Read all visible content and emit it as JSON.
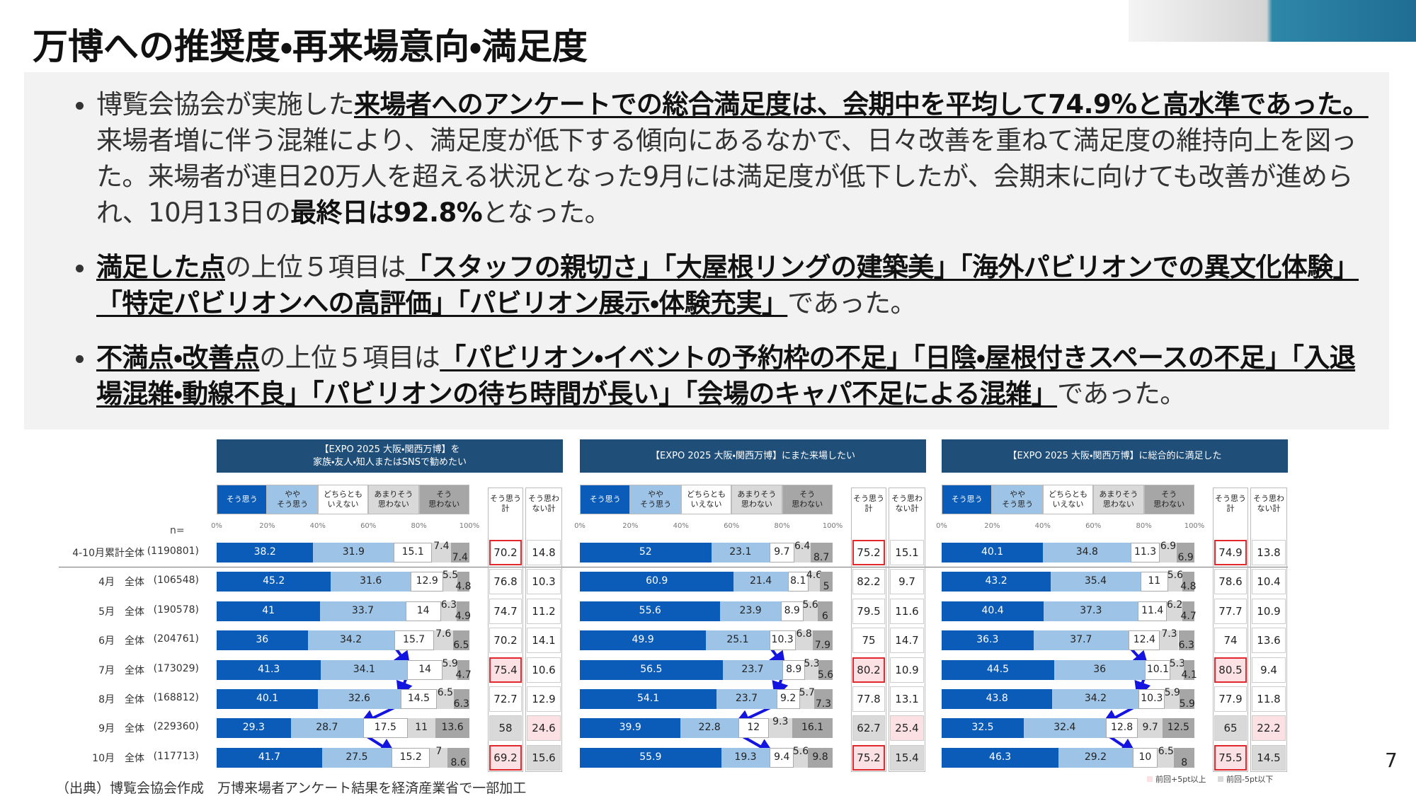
{
  "header": {
    "title": "万博への推奨度・再来場意向・満足度"
  },
  "bullets": [
    {
      "runs": [
        {
          "text": "博覧会協会が実施した",
          "style": "normal"
        },
        {
          "text": "来場者へのアンケートでの総合満足度は、会期中を平均して74.9%と高水準であった。",
          "style": "bold-underline"
        },
        {
          "text": "来場者増に伴う混雑により、満足度が低下する傾向にあるなかで、日々改善を重ねて満足度の維持向上を図った。来場者が連日20万人を超える状況となった9月には満足度が低下したが、会期末に向けても改善が進められ、10月13日の",
          "style": "normal"
        },
        {
          "text": "最終日は92.8%",
          "style": "bold"
        },
        {
          "text": "となった。",
          "style": "normal"
        }
      ]
    },
    {
      "runs": [
        {
          "text": "満足した点",
          "style": "bold-underline"
        },
        {
          "text": "の上位５項目は",
          "style": "normal"
        },
        {
          "text": "「スタッフの親切さ」「大屋根リングの建築美」「海外パビリオンでの異文化体験」「特定パビリオンへの高評価」「パビリオン展示・体験充実」",
          "style": "bold-underline"
        },
        {
          "text": "であった。",
          "style": "normal"
        }
      ]
    },
    {
      "runs": [
        {
          "text": "不満点・改善点",
          "style": "bold-underline"
        },
        {
          "text": "の上位５項目は",
          "style": "normal"
        },
        {
          "text": "「パビリオン・イベントの予約枠の不足」「日陰・屋根付きスペースの不足」「入退場混雑・動線不良」「パビリオンの待ち時間が長い」「会場のキャパ不足による混雑」",
          "style": "bold-underline"
        },
        {
          "text": "であった。",
          "style": "normal"
        }
      ]
    }
  ],
  "charts": {
    "segment_labels": [
      "そう思う",
      "やや\nそう思う",
      "どちらとも\nいえない",
      "あまりそう\n思わない",
      "そう\n思わない"
    ],
    "segment_colors": [
      "#0b5cb8",
      "#9dc3e6",
      "#ffffff",
      "#d9d9d9",
      "#a6a6a6"
    ],
    "total_labels": [
      "そう思う\n計",
      "そう思わ\nない計"
    ],
    "xlim": [
      0,
      100
    ],
    "xticks": [
      {
        "value": 0,
        "label": "0%"
      },
      {
        "value": 20,
        "label": "20%"
      },
      {
        "value": 40,
        "label": "40%"
      },
      {
        "value": 60,
        "label": "60%"
      },
      {
        "value": 80,
        "label": "80%"
      },
      {
        "value": 100,
        "label": "100%"
      }
    ],
    "n_label": "n=",
    "rows": [
      {
        "label": "4-10月累計全体",
        "n": "(1190801)"
      },
      {
        "label": "4月　全体",
        "n": "(106548)"
      },
      {
        "label": "5月　全体",
        "n": "(190578)"
      },
      {
        "label": "6月　全体",
        "n": "(204761)"
      },
      {
        "label": "7月　全体",
        "n": "(173029)"
      },
      {
        "label": "8月　全体",
        "n": "(168812)"
      },
      {
        "label": "9月　全体",
        "n": "(229360)"
      },
      {
        "label": "10月　全体",
        "n": "(117713)"
      }
    ],
    "outline_color": "#e0282e",
    "shade_colors": {
      "up": "#fbe1e4",
      "down": "#d9d9d9"
    },
    "key": [
      {
        "label": "前回+5pt以上",
        "shade": "up"
      },
      {
        "label": "前回-5pt以下",
        "shade": "down"
      }
    ],
    "panels": [
      {
        "title": "【EXPO 2025 大阪・関西万博】を\n家族・友人・知人またはSNSで勧めたい",
        "rows": [
          {
            "segments": [
              38.2,
              31.9,
              15.1,
              7.4,
              7.4
            ],
            "totals": [
              70.2,
              14.8
            ],
            "outline": true,
            "shade": [
              null,
              null
            ]
          },
          {
            "segments": [
              45.2,
              31.6,
              12.9,
              5.5,
              4.8
            ],
            "totals": [
              76.8,
              10.3
            ],
            "outline": false,
            "shade": [
              null,
              null
            ]
          },
          {
            "segments": [
              41.0,
              33.7,
              14.0,
              6.3,
              4.9
            ],
            "totals": [
              74.7,
              11.2
            ],
            "outline": false,
            "shade": [
              null,
              null
            ]
          },
          {
            "segments": [
              36.0,
              34.2,
              15.7,
              7.6,
              6.5
            ],
            "totals": [
              70.2,
              14.1
            ],
            "outline": false,
            "shade": [
              null,
              null
            ]
          },
          {
            "segments": [
              41.3,
              34.1,
              14.0,
              5.9,
              4.7
            ],
            "totals": [
              75.4,
              10.6
            ],
            "outline": true,
            "shade": [
              "up",
              null
            ]
          },
          {
            "segments": [
              40.1,
              32.6,
              14.5,
              6.5,
              6.3
            ],
            "totals": [
              72.7,
              12.9
            ],
            "outline": false,
            "shade": [
              null,
              null
            ]
          },
          {
            "segments": [
              29.3,
              28.7,
              17.5,
              11.0,
              13.6
            ],
            "totals": [
              58.0,
              24.6
            ],
            "outline": false,
            "shade": [
              "down",
              "up"
            ]
          },
          {
            "segments": [
              41.7,
              27.5,
              15.2,
              7.0,
              8.6
            ],
            "totals": [
              69.2,
              15.6
            ],
            "outline": true,
            "shade": [
              "up",
              "down"
            ]
          }
        ]
      },
      {
        "title": "【EXPO 2025 大阪・関西万博】にまた来場したい",
        "rows": [
          {
            "segments": [
              52.0,
              23.1,
              9.7,
              6.4,
              8.7
            ],
            "totals": [
              75.2,
              15.1
            ],
            "outline": true,
            "shade": [
              null,
              null
            ]
          },
          {
            "segments": [
              60.9,
              21.4,
              8.1,
              4.6,
              5.0
            ],
            "totals": [
              82.2,
              9.7
            ],
            "outline": false,
            "shade": [
              null,
              null
            ]
          },
          {
            "segments": [
              55.6,
              23.9,
              8.9,
              5.6,
              6.0
            ],
            "totals": [
              79.5,
              11.6
            ],
            "outline": false,
            "shade": [
              null,
              null
            ]
          },
          {
            "segments": [
              49.9,
              25.1,
              10.3,
              6.8,
              7.9
            ],
            "totals": [
              75.0,
              14.7
            ],
            "outline": false,
            "shade": [
              null,
              null
            ]
          },
          {
            "segments": [
              56.5,
              23.7,
              8.9,
              5.3,
              5.6
            ],
            "totals": [
              80.2,
              10.9
            ],
            "outline": true,
            "shade": [
              "up",
              null
            ]
          },
          {
            "segments": [
              54.1,
              23.7,
              9.2,
              5.7,
              7.3
            ],
            "totals": [
              77.8,
              13.1
            ],
            "outline": false,
            "shade": [
              null,
              null
            ]
          },
          {
            "segments": [
              39.9,
              22.8,
              12.0,
              9.3,
              16.1
            ],
            "totals": [
              62.7,
              25.4
            ],
            "outline": false,
            "shade": [
              "down",
              "up"
            ]
          },
          {
            "segments": [
              55.9,
              19.3,
              9.4,
              5.6,
              9.8
            ],
            "totals": [
              75.2,
              15.4
            ],
            "outline": true,
            "shade": [
              "up",
              "down"
            ]
          }
        ]
      },
      {
        "title": "【EXPO 2025 大阪・関西万博】に総合的に満足した",
        "rows": [
          {
            "segments": [
              40.1,
              34.8,
              11.3,
              6.9,
              6.9
            ],
            "totals": [
              74.9,
              13.8
            ],
            "outline": true,
            "shade": [
              null,
              null
            ]
          },
          {
            "segments": [
              43.2,
              35.4,
              11.0,
              5.6,
              4.8
            ],
            "totals": [
              78.6,
              10.4
            ],
            "outline": false,
            "shade": [
              null,
              null
            ]
          },
          {
            "segments": [
              40.4,
              37.3,
              11.4,
              6.2,
              4.7
            ],
            "totals": [
              77.7,
              10.9
            ],
            "outline": false,
            "shade": [
              null,
              null
            ]
          },
          {
            "segments": [
              36.3,
              37.7,
              12.4,
              7.3,
              6.3
            ],
            "totals": [
              74.0,
              13.6
            ],
            "outline": false,
            "shade": [
              null,
              null
            ]
          },
          {
            "segments": [
              44.5,
              36.0,
              10.1,
              5.3,
              4.1
            ],
            "totals": [
              80.5,
              9.4
            ],
            "outline": true,
            "shade": [
              "up",
              null
            ]
          },
          {
            "segments": [
              43.8,
              34.2,
              10.3,
              5.9,
              5.9
            ],
            "totals": [
              77.9,
              11.8
            ],
            "outline": false,
            "shade": [
              null,
              null
            ]
          },
          {
            "segments": [
              32.5,
              32.4,
              12.8,
              9.7,
              12.5
            ],
            "totals": [
              65.0,
              22.2
            ],
            "outline": false,
            "shade": [
              "down",
              "up"
            ]
          },
          {
            "segments": [
              46.3,
              29.2,
              10.0,
              6.5,
              8.0
            ],
            "totals": [
              75.5,
              14.5
            ],
            "outline": true,
            "shade": [
              "up",
              "down"
            ]
          }
        ]
      }
    ]
  },
  "footer": {
    "source": "（出典）博覧会協会作成　万博来場者アンケート結果を経済産業省で一部加工",
    "page": "7"
  }
}
